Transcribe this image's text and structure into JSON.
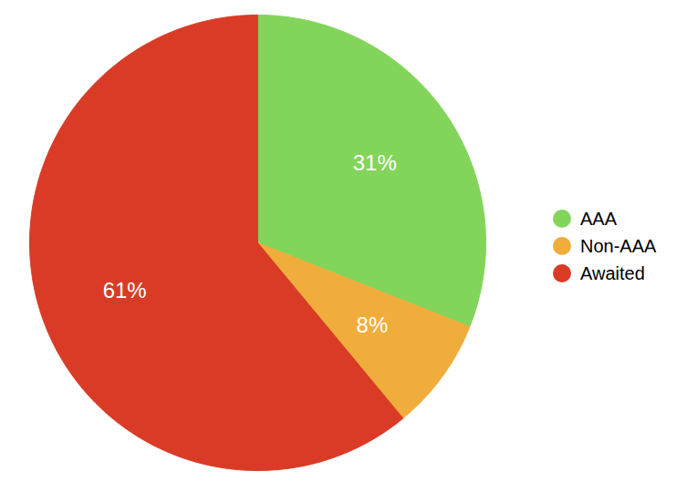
{
  "chart_data": {
    "type": "pie",
    "categories": [
      "AAA",
      "Non-AAA",
      "Awaited"
    ],
    "values": [
      31,
      8,
      61
    ],
    "value_labels": [
      "31%",
      "8%",
      "61%"
    ],
    "colors": [
      "#82d55a",
      "#f0ad3c",
      "#d93b26"
    ],
    "data_labels": true,
    "legend": "right"
  }
}
